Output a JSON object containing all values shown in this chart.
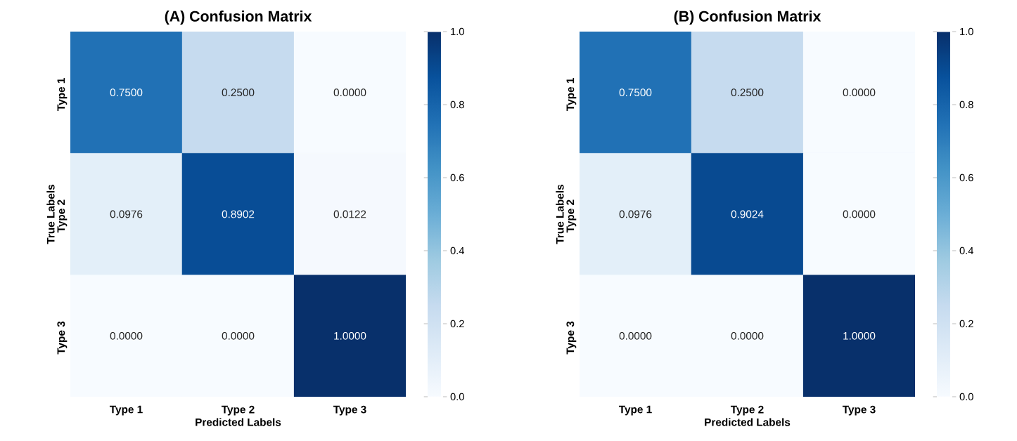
{
  "chart_data": [
    {
      "type": "heatmap",
      "title": "(A) Confusion Matrix",
      "xlabel": "Predicted Labels",
      "ylabel": "True Labels",
      "categories": [
        "Type 1",
        "Type 2",
        "Type 3"
      ],
      "y_categories": [
        "Type 1",
        "Type 2",
        "Type 3"
      ],
      "cells": [
        [
          0.75,
          0.25,
          0.0
        ],
        [
          0.0976,
          0.8902,
          0.0122
        ],
        [
          0.0,
          0.0,
          1.0
        ]
      ],
      "cell_labels": [
        [
          "0.7500",
          "0.2500",
          "0.0000"
        ],
        [
          "0.0976",
          "0.8902",
          "0.0122"
        ],
        [
          "0.0000",
          "0.0000",
          "1.0000"
        ]
      ],
      "clim": [
        0,
        1
      ],
      "cticks": [
        {
          "value": 0,
          "label": "0.0"
        },
        {
          "value": 0.2,
          "label": "0.2"
        },
        {
          "value": 0.4,
          "label": "0.4"
        },
        {
          "value": 0.6,
          "label": "0.6"
        },
        {
          "value": 0.8,
          "label": "0.8"
        },
        {
          "value": 1,
          "label": "1.0"
        }
      ]
    },
    {
      "type": "heatmap",
      "title": "(B) Confusion Matrix",
      "xlabel": "Predicted Labels",
      "ylabel": "True Labels",
      "categories": [
        "Type 1",
        "Type 2",
        "Type 3"
      ],
      "y_categories": [
        "Type 1",
        "Type 2",
        "Type 3"
      ],
      "cells": [
        [
          0.75,
          0.25,
          0.0
        ],
        [
          0.0976,
          0.9024,
          0.0
        ],
        [
          0.0,
          0.0,
          1.0
        ]
      ],
      "cell_labels": [
        [
          "0.7500",
          "0.2500",
          "0.0000"
        ],
        [
          "0.0976",
          "0.9024",
          "0.0000"
        ],
        [
          "0.0000",
          "0.0000",
          "1.0000"
        ]
      ],
      "clim": [
        0,
        1
      ],
      "cticks": [
        {
          "value": 0,
          "label": "0.0"
        },
        {
          "value": 0.2,
          "label": "0.2"
        },
        {
          "value": 0.4,
          "label": "0.4"
        },
        {
          "value": 0.6,
          "label": "0.6"
        },
        {
          "value": 0.8,
          "label": "0.8"
        },
        {
          "value": 1,
          "label": "1.0"
        }
      ]
    }
  ]
}
